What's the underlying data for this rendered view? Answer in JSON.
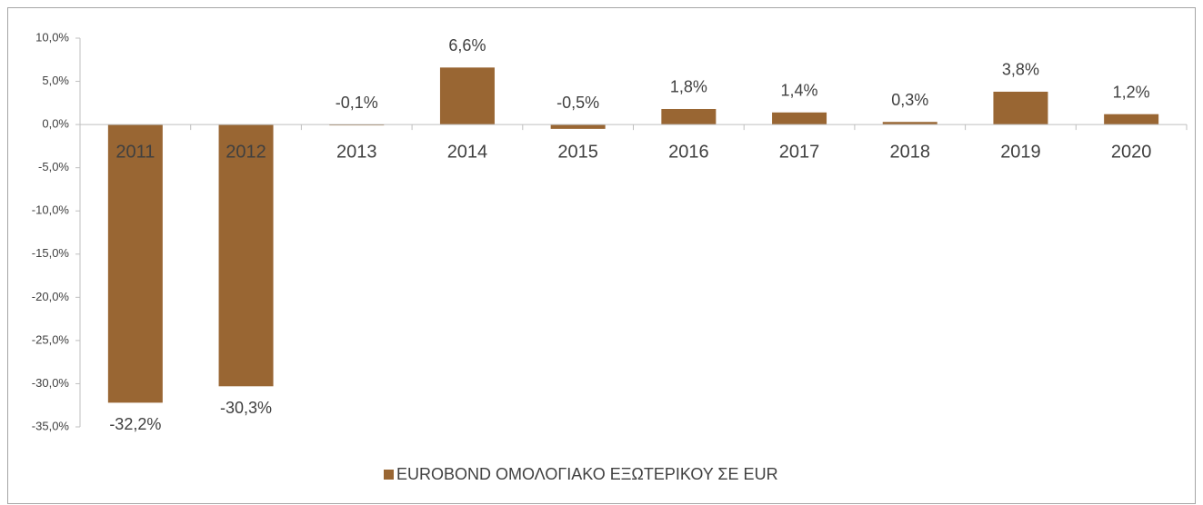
{
  "chart_data": {
    "type": "bar",
    "categories": [
      "2011",
      "2012",
      "2013",
      "2014",
      "2015",
      "2016",
      "2017",
      "2018",
      "2019",
      "2020"
    ],
    "series": [
      {
        "name": "EUROBOND ΟΜΟΛΟΓΙΑΚΟ ΕΞΩΤΕΡΙΚΟΥ ΣΕ EUR",
        "color": "#996633",
        "values": [
          -32.2,
          -30.3,
          -0.1,
          6.6,
          -0.5,
          1.8,
          1.4,
          0.3,
          3.8,
          1.2
        ],
        "value_labels": [
          "-32,2%",
          "-30,3%",
          "-0,1%",
          "6,6%",
          "-0,5%",
          "1,8%",
          "1,4%",
          "0,3%",
          "3,8%",
          "1,2%"
        ]
      }
    ],
    "ylim": [
      -35,
      10
    ],
    "yticks": [
      {
        "value": 10,
        "label": "10,0%"
      },
      {
        "value": 5,
        "label": "5,0%"
      },
      {
        "value": 0,
        "label": "0,0%"
      },
      {
        "value": -5,
        "label": "-5,0%"
      },
      {
        "value": -10,
        "label": "-10,0%"
      },
      {
        "value": -15,
        "label": "-15,0%"
      },
      {
        "value": -20,
        "label": "-20,0%"
      },
      {
        "value": -25,
        "label": "-25,0%"
      },
      {
        "value": -30,
        "label": "-30,0%"
      },
      {
        "value": -35,
        "label": "-35,0%"
      }
    ],
    "grid": false,
    "legend": "bottom"
  }
}
